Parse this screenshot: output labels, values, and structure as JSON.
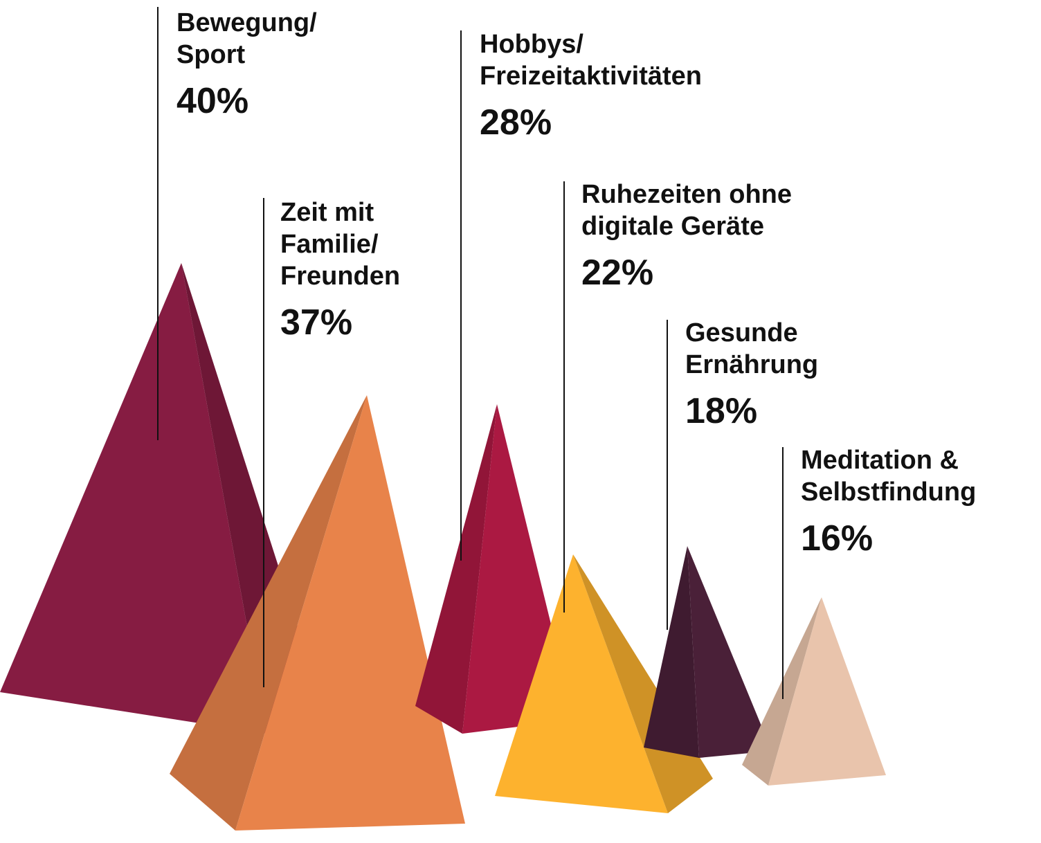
{
  "chart_data": {
    "type": "pyramid",
    "categories": [
      "Bewegung/\nSport",
      "Zeit mit\nFamilie/\nFreunden",
      "Hobbys/\nFreizeitaktivitäten",
      "Ruhezeiten ohne\ndigitale Geräte",
      "Gesunde\nErnährung",
      "Meditation &\nSelbstfindung"
    ],
    "values": [
      40,
      37,
      28,
      22,
      18,
      16
    ],
    "value_labels": [
      "40%",
      "37%",
      "28%",
      "22%",
      "18%",
      "16%"
    ],
    "colors": [
      "#861c42",
      "#e8834a",
      "#ab1942",
      "#fdb22e",
      "#4a2038",
      "#e9c4ac"
    ]
  }
}
